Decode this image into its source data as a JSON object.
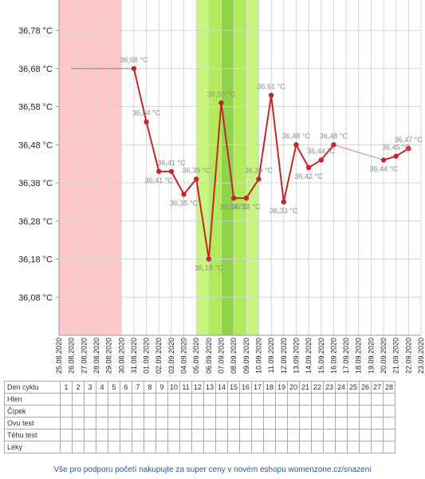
{
  "chart_data": {
    "type": "line",
    "y_unit": "°C",
    "ylim": [
      35.98,
      36.86
    ],
    "y_ticks": [
      "36,08 °C",
      "36,18 °C",
      "36,28 °C",
      "36,38 °C",
      "36,48 °C",
      "36,58 °C",
      "36,68 °C",
      "36,78 °C"
    ],
    "y_tick_values": [
      36.08,
      36.18,
      36.28,
      36.38,
      36.48,
      36.58,
      36.68,
      36.78
    ],
    "dates": [
      "25.08.2020",
      "26.08.2020",
      "27.08.2020",
      "28.08.2020",
      "29.08.2020",
      "30.08.2020",
      "31.08.2020",
      "01.09.2020",
      "02.09.2020",
      "03.09.2020",
      "04.09.2020",
      "05.09.2020",
      "06.09.2020",
      "07.09.2020",
      "08.09.2020",
      "09.09.2020",
      "10.09.2020",
      "11.09.2020",
      "12.09.2020",
      "13.09.2020",
      "14.09.2020",
      "15.09.2020",
      "16.09.2020",
      "17.09.2020",
      "18.09.2020",
      "19.09.2020",
      "20.09.2020",
      "21.09.2020",
      "22.09.2020",
      "23.09.2020"
    ],
    "grid": true,
    "series": [
      {
        "color": "#c0282d",
        "points": [
          {
            "date": "31.08.2020",
            "value": 36.68,
            "label": "36,68 °C"
          },
          {
            "date": "01.09.2020",
            "value": 36.54,
            "label": "36,54 °C"
          },
          {
            "date": "02.09.2020",
            "value": 36.41,
            "label": "36,41 °C"
          },
          {
            "date": "03.09.2020",
            "value": 36.41,
            "label": "36,41 °C"
          },
          {
            "date": "04.09.2020",
            "value": 36.35,
            "label": "36,35 °C"
          },
          {
            "date": "05.09.2020",
            "value": 36.39,
            "label": "36,39 °C"
          },
          {
            "date": "06.09.2020",
            "value": 36.18,
            "label": "36,18 °C"
          },
          {
            "date": "07.09.2020",
            "value": 36.59,
            "label": "36,59 °C"
          },
          {
            "date": "08.09.2020",
            "value": 36.34,
            "label": "36,34 °C"
          },
          {
            "date": "09.09.2020",
            "value": 36.34,
            "label": "36,34 °C"
          },
          {
            "date": "10.09.2020",
            "value": 36.39,
            "label": "36,39 °C"
          },
          {
            "date": "11.09.2020",
            "value": 36.61,
            "label": "36,61 °C"
          },
          {
            "date": "12.09.2020",
            "value": 36.33,
            "label": "36,33 °C"
          },
          {
            "date": "13.09.2020",
            "value": 36.48,
            "label": "36,48 °C"
          },
          {
            "date": "14.09.2020",
            "value": 36.42,
            "label": "36,42 °C"
          },
          {
            "date": "15.09.2020",
            "value": 36.44,
            "label": "36,44 °C"
          },
          {
            "date": "16.09.2020",
            "value": 36.48,
            "label": "36,48 °C"
          },
          {
            "date": "20.09.2020",
            "value": 36.44,
            "label": "36,44 °C"
          },
          {
            "date": "21.09.2020",
            "value": 36.45,
            "label": "36,45 °C"
          },
          {
            "date": "22.09.2020",
            "value": 36.47,
            "label": "36,47 °C"
          }
        ]
      }
    ],
    "reference_line": {
      "from_date": "26.08.2020",
      "to_date": "31.08.2020",
      "value": 36.68
    },
    "bands": [
      {
        "from_date": "25.08.2020",
        "to_date": "30.08.2020",
        "color": "#ffc8c8"
      },
      {
        "from_date": "05.09.2020",
        "to_date": "10.09.2020",
        "color": "#c8f580"
      },
      {
        "from_date": "06.09.2020",
        "to_date": "09.09.2020",
        "color": "#b0ec5a"
      },
      {
        "from_date": "07.09.2020",
        "to_date": "08.09.2020",
        "color": "#8fd448"
      }
    ]
  },
  "table": {
    "header_label": "Den cyklu",
    "days": [
      "1",
      "2",
      "3",
      "4",
      "5",
      "6",
      "7",
      "8",
      "9",
      "10",
      "11",
      "12",
      "13",
      "14",
      "15",
      "16",
      "17",
      "18",
      "19",
      "20",
      "21",
      "22",
      "23",
      "24",
      "25",
      "26",
      "27",
      "28"
    ],
    "rows": [
      "Hlen",
      "Čípek",
      "Ovu test",
      "Těhu test",
      "Léky"
    ]
  },
  "footer": "Vše pro podporu početí nakupujte za super ceny v novém eshopu womenzone.cz/snazeni"
}
